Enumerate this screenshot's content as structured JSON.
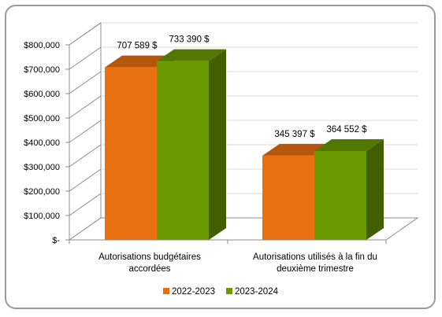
{
  "chart_data": {
    "type": "bar",
    "three_d": true,
    "categories": [
      [
        "Autorisations budgétaires",
        "accordées"
      ],
      [
        "Autorisations utilisés à la fin du",
        "deuxième trimestre"
      ]
    ],
    "series": [
      {
        "name": "2022-2023",
        "color": "#E8700E",
        "values": [
          707589,
          345397
        ],
        "labels": [
          "707 589 $",
          "345 397 $"
        ]
      },
      {
        "name": "2023-2024",
        "color": "#6A9A00",
        "values": [
          733390,
          364552
        ],
        "labels": [
          "733 390 $",
          "364 552 $"
        ]
      }
    ],
    "ylim": [
      0,
      800000
    ],
    "yticks": [
      {
        "value": 800000,
        "label": "$800,000"
      },
      {
        "value": 700000,
        "label": "$700,000"
      },
      {
        "value": 600000,
        "label": "$600,000"
      },
      {
        "value": 500000,
        "label": "$500,000"
      },
      {
        "value": 400000,
        "label": "$400,000"
      },
      {
        "value": 300000,
        "label": "$300,000"
      },
      {
        "value": 200000,
        "label": "$200,000"
      },
      {
        "value": 100000,
        "label": "$100,000"
      },
      {
        "value": 0,
        "label": "$-"
      }
    ],
    "grid": true,
    "legend": "bottom",
    "title": "",
    "xlabel": "",
    "ylabel": ""
  }
}
